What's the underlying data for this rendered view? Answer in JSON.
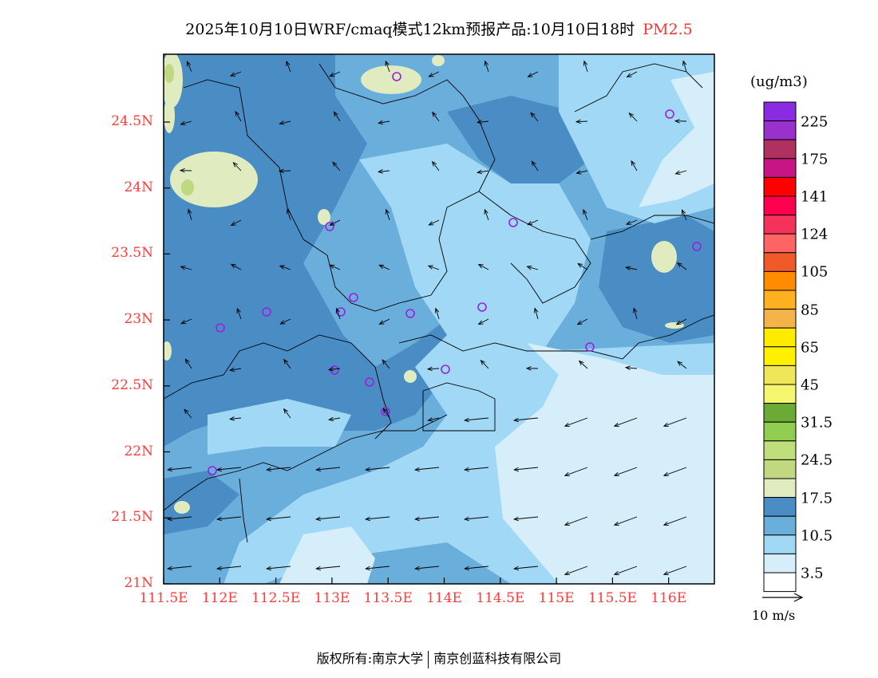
{
  "title": {
    "main": "2025年10月10日WRF/cmaq模式12km预报产品:10月10日18时",
    "pollutant": "PM2.5"
  },
  "axes": {
    "lat_labels": [
      "24.5N",
      "24N",
      "23.5N",
      "23N",
      "22.5N",
      "22N",
      "21.5N",
      "21N"
    ],
    "lon_labels": [
      "111.5E",
      "112E",
      "112.5E",
      "113E",
      "113.5E",
      "114E",
      "114.5E",
      "115E",
      "115.5E",
      "116E"
    ]
  },
  "legend": {
    "units": "(ug/m3)",
    "colors": [
      "#8a2be2",
      "#9932cc",
      "#b03060",
      "#c71585",
      "#ff0000",
      "#ff0050",
      "#f5325a",
      "#ff6464",
      "#f05a28",
      "#ff8c00",
      "#ffb020",
      "#f5b44a",
      "#ffeb00",
      "#fff000",
      "#f0e65a",
      "#f5f56e",
      "#6aaa35",
      "#90cd50",
      "#bedf7a",
      "#c0d880",
      "#e0ebc0",
      "#4a8cc4",
      "#6aaedc",
      "#a0d8f5",
      "#d6eefa",
      "#ffffff"
    ],
    "labels": [
      "225",
      "175",
      "141",
      "124",
      "105",
      "85",
      "65",
      "45",
      "31.5",
      "24.5",
      "17.5",
      "10.5",
      "3.5"
    ]
  },
  "wind_scale": {
    "label": "10 m/s"
  },
  "footer": {
    "left": "版权所有:南京大学",
    "right": "南京创蓝科技有限公司"
  },
  "colors": {
    "station": "#9b1fe0",
    "tick": "#ff3b3b"
  }
}
